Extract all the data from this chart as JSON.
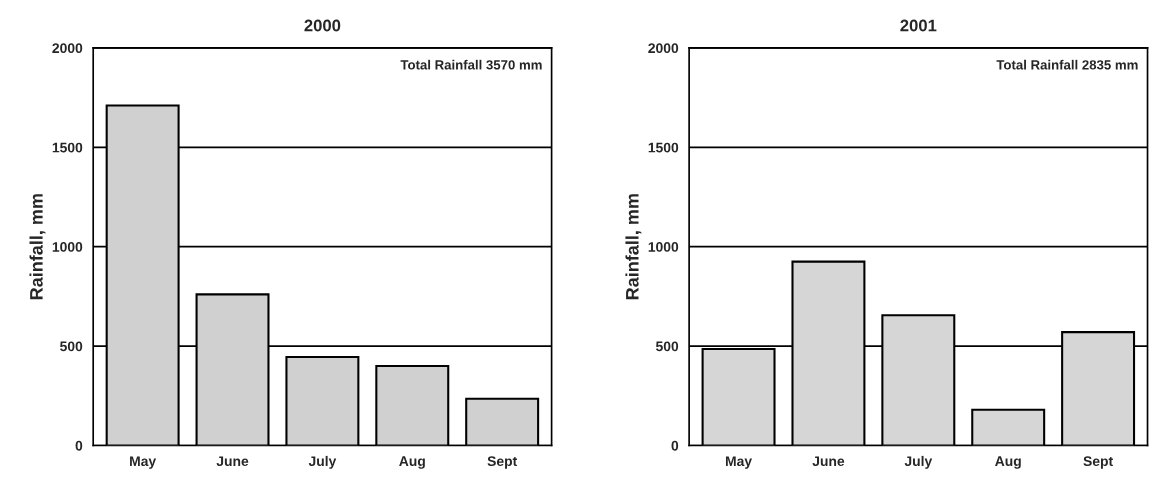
{
  "chart_data": [
    {
      "type": "bar",
      "title": "2000",
      "ylabel": "Rainfall, mm",
      "categories": [
        "May",
        "June",
        "July",
        "Aug",
        "Sept"
      ],
      "values": [
        1710,
        760,
        445,
        400,
        235
      ],
      "color": "#d0d0d0",
      "ylim": [
        0,
        2000
      ],
      "yticks": [
        0,
        500,
        1000,
        1500,
        2000
      ],
      "grid": "y",
      "annotations": [
        "Total Rainfall 3570 mm"
      ]
    },
    {
      "type": "bar",
      "title": "2001",
      "ylabel": "Rainfall, mm",
      "categories": [
        "May",
        "June",
        "July",
        "Aug",
        "Sept"
      ],
      "values": [
        485,
        925,
        655,
        180,
        570
      ],
      "color": "#d6d6d6",
      "ylim": [
        0,
        2000
      ],
      "yticks": [
        0,
        500,
        1000,
        1500,
        2000
      ],
      "grid": "y",
      "annotations": [
        "Total Rainfall 2835 mm"
      ]
    }
  ]
}
